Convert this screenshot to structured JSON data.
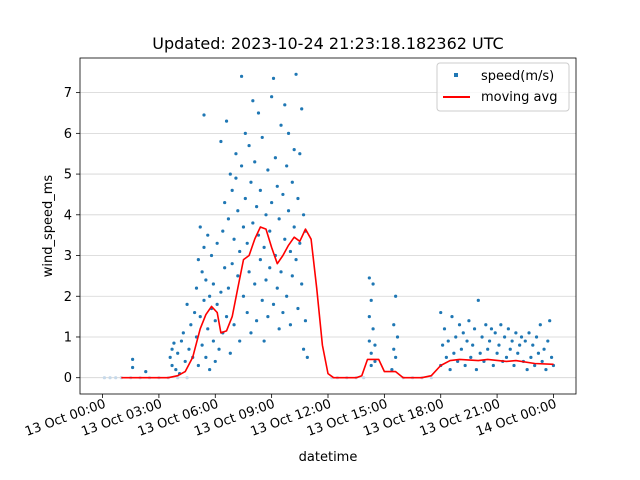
{
  "chart_data": {
    "type": "scatter",
    "title": "Updated: 2023-10-24 21:23:18.182362 UTC",
    "xlabel": "datetime",
    "ylabel": "wind_speed_ms",
    "x_range_hours": [
      -1.2,
      25.2
    ],
    "ylim": [
      -0.4,
      7.85
    ],
    "y_ticks": [
      0,
      1,
      2,
      3,
      4,
      5,
      6,
      7
    ],
    "x_ticks": [
      {
        "hour": 0,
        "label": "13 Oct 00:00"
      },
      {
        "hour": 3,
        "label": "13 Oct 03:00"
      },
      {
        "hour": 6,
        "label": "13 Oct 06:00"
      },
      {
        "hour": 9,
        "label": "13 Oct 09:00"
      },
      {
        "hour": 12,
        "label": "13 Oct 12:00"
      },
      {
        "hour": 15,
        "label": "13 Oct 15:00"
      },
      {
        "hour": 18,
        "label": "13 Oct 18:00"
      },
      {
        "hour": 21,
        "label": "13 Oct 21:00"
      },
      {
        "hour": 24,
        "label": "14 Oct 00:00"
      }
    ],
    "grid": "horizontal",
    "legend_position": "top-right",
    "series": [
      {
        "name": "speed(m/s)",
        "kind": "scatter",
        "color": "#1f77b4",
        "points": [
          [
            0.1,
            0
          ],
          [
            0.4,
            0
          ],
          [
            0.7,
            0
          ],
          [
            1.0,
            0
          ],
          [
            1.5,
            0
          ],
          [
            2.0,
            0
          ],
          [
            2.5,
            0
          ],
          [
            3.0,
            0
          ],
          [
            3.5,
            0
          ],
          [
            4.0,
            0
          ],
          [
            4.5,
            0
          ],
          [
            1.6,
            0.45
          ],
          [
            1.6,
            0.25
          ],
          [
            2.3,
            0.15
          ],
          [
            3.6,
            0.5
          ],
          [
            3.7,
            0.3
          ],
          [
            3.8,
            0.85
          ],
          [
            3.9,
            0.2
          ],
          [
            3.7,
            0.7
          ],
          [
            4.0,
            0.6
          ],
          [
            4.1,
            0.1
          ],
          [
            4.2,
            0.9
          ],
          [
            4.3,
            1.1
          ],
          [
            4.4,
            0.4
          ],
          [
            4.5,
            1.8
          ],
          [
            4.6,
            0.7
          ],
          [
            4.7,
            1.3
          ],
          [
            4.8,
            0.5
          ],
          [
            4.9,
            1.6
          ],
          [
            5.0,
            2.2
          ],
          [
            5.0,
            1.0
          ],
          [
            5.1,
            0.3
          ],
          [
            5.1,
            2.9
          ],
          [
            5.2,
            3.7
          ],
          [
            5.2,
            1.5
          ],
          [
            5.3,
            2.6
          ],
          [
            5.3,
            0.8
          ],
          [
            5.4,
            6.45
          ],
          [
            5.4,
            3.2
          ],
          [
            5.4,
            1.9
          ],
          [
            5.5,
            2.4
          ],
          [
            5.5,
            0.5
          ],
          [
            5.6,
            3.5
          ],
          [
            5.6,
            1.2
          ],
          [
            5.7,
            2.0
          ],
          [
            5.7,
            0.2
          ],
          [
            5.8,
            1.7
          ],
          [
            5.8,
            3.0
          ],
          [
            5.9,
            0.9
          ],
          [
            5.9,
            2.3
          ],
          [
            6.0,
            1.4
          ],
          [
            6.0,
            0.4
          ],
          [
            6.1,
            3.3
          ],
          [
            6.1,
            1.8
          ],
          [
            6.2,
            0.7
          ],
          [
            6.3,
            2.1
          ],
          [
            6.3,
            5.8
          ],
          [
            6.4,
            1.1
          ],
          [
            6.4,
            3.6
          ],
          [
            6.5,
            2.7
          ],
          [
            6.5,
            4.3
          ],
          [
            6.6,
            1.5
          ],
          [
            6.6,
            6.3
          ],
          [
            6.7,
            3.9
          ],
          [
            6.7,
            2.2
          ],
          [
            6.8,
            5.0
          ],
          [
            6.8,
            0.6
          ],
          [
            6.9,
            4.6
          ],
          [
            6.9,
            2.8
          ],
          [
            7.0,
            3.4
          ],
          [
            7.0,
            1.3
          ],
          [
            7.1,
            4.9
          ],
          [
            7.1,
            5.5
          ],
          [
            7.2,
            2.5
          ],
          [
            7.2,
            4.1
          ],
          [
            7.3,
            3.1
          ],
          [
            7.3,
            0.9
          ],
          [
            7.4,
            7.4
          ],
          [
            7.4,
            5.2
          ],
          [
            7.5,
            3.7
          ],
          [
            7.5,
            2.0
          ],
          [
            7.6,
            6.0
          ],
          [
            7.6,
            4.4
          ],
          [
            7.7,
            1.6
          ],
          [
            7.7,
            3.3
          ],
          [
            7.8,
            5.7
          ],
          [
            7.8,
            2.6
          ],
          [
            7.9,
            4.8
          ],
          [
            7.9,
            1.1
          ],
          [
            8.0,
            6.8
          ],
          [
            8.0,
            3.8
          ],
          [
            8.1,
            2.3
          ],
          [
            8.1,
            5.3
          ],
          [
            8.2,
            4.2
          ],
          [
            8.2,
            1.4
          ],
          [
            8.3,
            3.5
          ],
          [
            8.3,
            6.5
          ],
          [
            8.4,
            2.9
          ],
          [
            8.4,
            4.6
          ],
          [
            8.5,
            1.9
          ],
          [
            8.5,
            5.9
          ],
          [
            8.6,
            3.2
          ],
          [
            8.6,
            0.9
          ],
          [
            8.7,
            4.0
          ],
          [
            8.7,
            2.4
          ],
          [
            8.8,
            5.1
          ],
          [
            8.8,
            1.5
          ],
          [
            8.9,
            3.6
          ],
          [
            8.9,
            2.7
          ],
          [
            9.0,
            6.9
          ],
          [
            9.0,
            4.3
          ],
          [
            9.1,
            7.35
          ],
          [
            9.1,
            1.8
          ],
          [
            9.2,
            3.0
          ],
          [
            9.2,
            5.4
          ],
          [
            9.3,
            2.2
          ],
          [
            9.3,
            4.7
          ],
          [
            9.4,
            1.2
          ],
          [
            9.4,
            3.9
          ],
          [
            9.5,
            6.2
          ],
          [
            9.5,
            2.6
          ],
          [
            9.6,
            4.5
          ],
          [
            9.6,
            1.6
          ],
          [
            9.7,
            6.7
          ],
          [
            9.7,
            3.4
          ],
          [
            9.8,
            5.2
          ],
          [
            9.8,
            2.0
          ],
          [
            9.9,
            4.1
          ],
          [
            9.9,
            6.0
          ],
          [
            10.0,
            3.1
          ],
          [
            10.0,
            1.3
          ],
          [
            10.1,
            4.8
          ],
          [
            10.1,
            2.5
          ],
          [
            10.2,
            5.6
          ],
          [
            10.2,
            3.7
          ],
          [
            10.3,
            7.45
          ],
          [
            10.3,
            2.9
          ],
          [
            10.4,
            4.4
          ],
          [
            10.4,
            1.7
          ],
          [
            10.5,
            5.5
          ],
          [
            10.5,
            3.3
          ],
          [
            10.6,
            6.6
          ],
          [
            10.6,
            2.3
          ],
          [
            10.7,
            4.0
          ],
          [
            10.7,
            0.7
          ],
          [
            10.8,
            3.6
          ],
          [
            10.8,
            1.4
          ],
          [
            10.9,
            0.5
          ],
          [
            12.2,
            0
          ],
          [
            12.5,
            0
          ],
          [
            13.0,
            0
          ],
          [
            13.5,
            0
          ],
          [
            13.9,
            0
          ],
          [
            14.2,
            0.9
          ],
          [
            14.2,
            2.45
          ],
          [
            14.2,
            1.5
          ],
          [
            14.3,
            0.6
          ],
          [
            14.3,
            1.9
          ],
          [
            14.3,
            0.3
          ],
          [
            14.4,
            1.2
          ],
          [
            14.4,
            2.3
          ],
          [
            14.5,
            0.8
          ],
          [
            14.5,
            0.4
          ],
          [
            15.4,
            0.2
          ],
          [
            15.5,
            1.3
          ],
          [
            15.5,
            0.7
          ],
          [
            15.6,
            2.0
          ],
          [
            15.6,
            0.5
          ],
          [
            15.7,
            1.0
          ],
          [
            16.0,
            0
          ],
          [
            16.5,
            0
          ],
          [
            17.0,
            0
          ],
          [
            17.5,
            0
          ],
          [
            18.0,
            0.3
          ],
          [
            18.0,
            1.6
          ],
          [
            18.1,
            0.8
          ],
          [
            18.2,
            1.2
          ],
          [
            18.3,
            0.5
          ],
          [
            18.4,
            0.9
          ],
          [
            18.5,
            0.2
          ],
          [
            18.6,
            1.5
          ],
          [
            18.7,
            0.6
          ],
          [
            18.8,
            1.0
          ],
          [
            18.9,
            0.4
          ],
          [
            19.0,
            1.3
          ],
          [
            19.1,
            0.7
          ],
          [
            19.2,
            1.1
          ],
          [
            19.3,
            0.3
          ],
          [
            19.4,
            0.9
          ],
          [
            19.5,
            1.4
          ],
          [
            19.6,
            0.5
          ],
          [
            19.7,
            0.8
          ],
          [
            19.8,
            1.2
          ],
          [
            19.9,
            0.2
          ],
          [
            20.0,
            1.9
          ],
          [
            20.1,
            0.6
          ],
          [
            20.2,
            1.0
          ],
          [
            20.3,
            0.4
          ],
          [
            20.4,
            1.3
          ],
          [
            20.5,
            0.7
          ],
          [
            20.6,
            0.9
          ],
          [
            20.7,
            1.2
          ],
          [
            20.8,
            0.3
          ],
          [
            20.9,
            1.1
          ],
          [
            21.0,
            0.6
          ],
          [
            21.1,
            0.8
          ],
          [
            21.2,
            1.3
          ],
          [
            21.3,
            0.4
          ],
          [
            21.4,
            1.0
          ],
          [
            21.5,
            0.5
          ],
          [
            21.6,
            1.2
          ],
          [
            21.7,
            0.7
          ],
          [
            21.8,
            0.9
          ],
          [
            21.9,
            0.3
          ],
          [
            22.0,
            1.1
          ],
          [
            22.1,
            0.6
          ],
          [
            22.2,
            0.8
          ],
          [
            22.3,
            1.0
          ],
          [
            22.4,
            0.4
          ],
          [
            22.5,
            0.9
          ],
          [
            22.6,
            0.2
          ],
          [
            22.7,
            1.1
          ],
          [
            22.8,
            0.5
          ],
          [
            22.9,
            0.8
          ],
          [
            23.0,
            0.3
          ],
          [
            23.1,
            1.0
          ],
          [
            23.2,
            0.6
          ],
          [
            23.3,
            1.3
          ],
          [
            23.4,
            0.4
          ],
          [
            23.5,
            0.7
          ],
          [
            23.6,
            0.2
          ],
          [
            23.7,
            0.9
          ],
          [
            23.8,
            1.4
          ],
          [
            23.9,
            0.5
          ],
          [
            24.0,
            0.3
          ]
        ]
      },
      {
        "name": "moving avg",
        "kind": "line",
        "color": "#ff0000",
        "points": [
          [
            1.0,
            0
          ],
          [
            3.5,
            0
          ],
          [
            4.0,
            0.05
          ],
          [
            4.4,
            0.15
          ],
          [
            4.8,
            0.5
          ],
          [
            5.2,
            1.2
          ],
          [
            5.5,
            1.55
          ],
          [
            5.8,
            1.75
          ],
          [
            6.1,
            1.6
          ],
          [
            6.3,
            1.1
          ],
          [
            6.6,
            1.15
          ],
          [
            6.9,
            1.5
          ],
          [
            7.2,
            2.2
          ],
          [
            7.5,
            2.9
          ],
          [
            7.8,
            3.0
          ],
          [
            8.1,
            3.4
          ],
          [
            8.4,
            3.7
          ],
          [
            8.7,
            3.65
          ],
          [
            9.0,
            3.2
          ],
          [
            9.3,
            2.8
          ],
          [
            9.6,
            3.0
          ],
          [
            9.9,
            3.25
          ],
          [
            10.2,
            3.45
          ],
          [
            10.5,
            3.35
          ],
          [
            10.8,
            3.65
          ],
          [
            11.1,
            3.4
          ],
          [
            11.4,
            2.2
          ],
          [
            11.7,
            0.8
          ],
          [
            12.0,
            0.1
          ],
          [
            12.3,
            0
          ],
          [
            13.5,
            0
          ],
          [
            13.8,
            0.05
          ],
          [
            14.1,
            0.45
          ],
          [
            14.7,
            0.45
          ],
          [
            15.0,
            0.15
          ],
          [
            15.6,
            0.15
          ],
          [
            16.0,
            0
          ],
          [
            17.0,
            0
          ],
          [
            17.5,
            0.05
          ],
          [
            18.0,
            0.3
          ],
          [
            18.5,
            0.42
          ],
          [
            19.0,
            0.45
          ],
          [
            20.0,
            0.42
          ],
          [
            20.5,
            0.45
          ],
          [
            21.5,
            0.4
          ],
          [
            22.0,
            0.42
          ],
          [
            23.0,
            0.35
          ],
          [
            24.0,
            0.33
          ]
        ]
      }
    ]
  }
}
